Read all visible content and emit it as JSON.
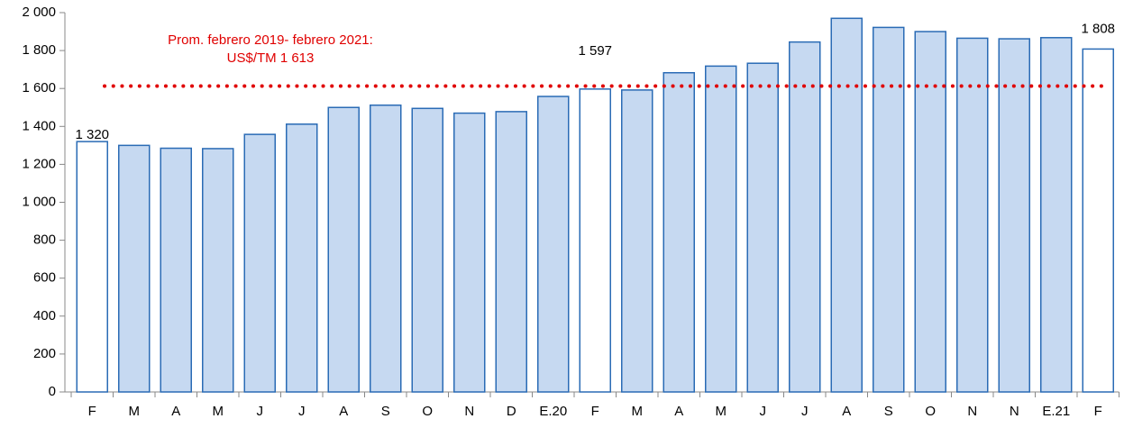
{
  "chart_data": {
    "type": "bar",
    "categories": [
      "F",
      "M",
      "A",
      "M",
      "J",
      "J",
      "A",
      "S",
      "O",
      "N",
      "D",
      "E.20",
      "F",
      "M",
      "A",
      "M",
      "J",
      "J",
      "A",
      "S",
      "O",
      "N",
      "N",
      "E.21",
      "F"
    ],
    "values": [
      1320,
      1300,
      1285,
      1283,
      1358,
      1412,
      1500,
      1512,
      1495,
      1470,
      1478,
      1558,
      1597,
      1592,
      1683,
      1718,
      1733,
      1845,
      1970,
      1922,
      1900,
      1865,
      1862,
      1868,
      1808
    ],
    "value_labels": [
      "1 320",
      null,
      null,
      null,
      null,
      null,
      null,
      null,
      null,
      null,
      null,
      null,
      "1 597",
      null,
      null,
      null,
      null,
      null,
      null,
      null,
      null,
      null,
      null,
      null,
      "1 808"
    ],
    "colors": [
      "#ffffff",
      "#c6d9f1",
      "#c6d9f1",
      "#c6d9f1",
      "#c6d9f1",
      "#c6d9f1",
      "#c6d9f1",
      "#c6d9f1",
      "#c6d9f1",
      "#c6d9f1",
      "#c6d9f1",
      "#c6d9f1",
      "#ffffff",
      "#c6d9f1",
      "#c6d9f1",
      "#c6d9f1",
      "#c6d9f1",
      "#c6d9f1",
      "#c6d9f1",
      "#c6d9f1",
      "#c6d9f1",
      "#c6d9f1",
      "#c6d9f1",
      "#c6d9f1",
      "#ffffff"
    ],
    "edge_color": "#2a6bb5",
    "average": 1613,
    "average_color": "#e00000",
    "annotation": [
      "Prom. febrero 2019- febrero 2021:",
      "US$/TM 1 613"
    ],
    "ylim": [
      0,
      2000
    ],
    "yticks": [
      0,
      200,
      400,
      600,
      800,
      {
        "value": 1000,
        "label": "1 000"
      },
      {
        "value": 1200,
        "label": "1 200"
      },
      {
        "value": 1400,
        "label": "1 400"
      },
      {
        "value": 1600,
        "label": "1 600"
      },
      {
        "value": 1800,
        "label": "1 800"
      },
      {
        "value": 2000,
        "label": "2 000"
      }
    ],
    "grid": false
  }
}
